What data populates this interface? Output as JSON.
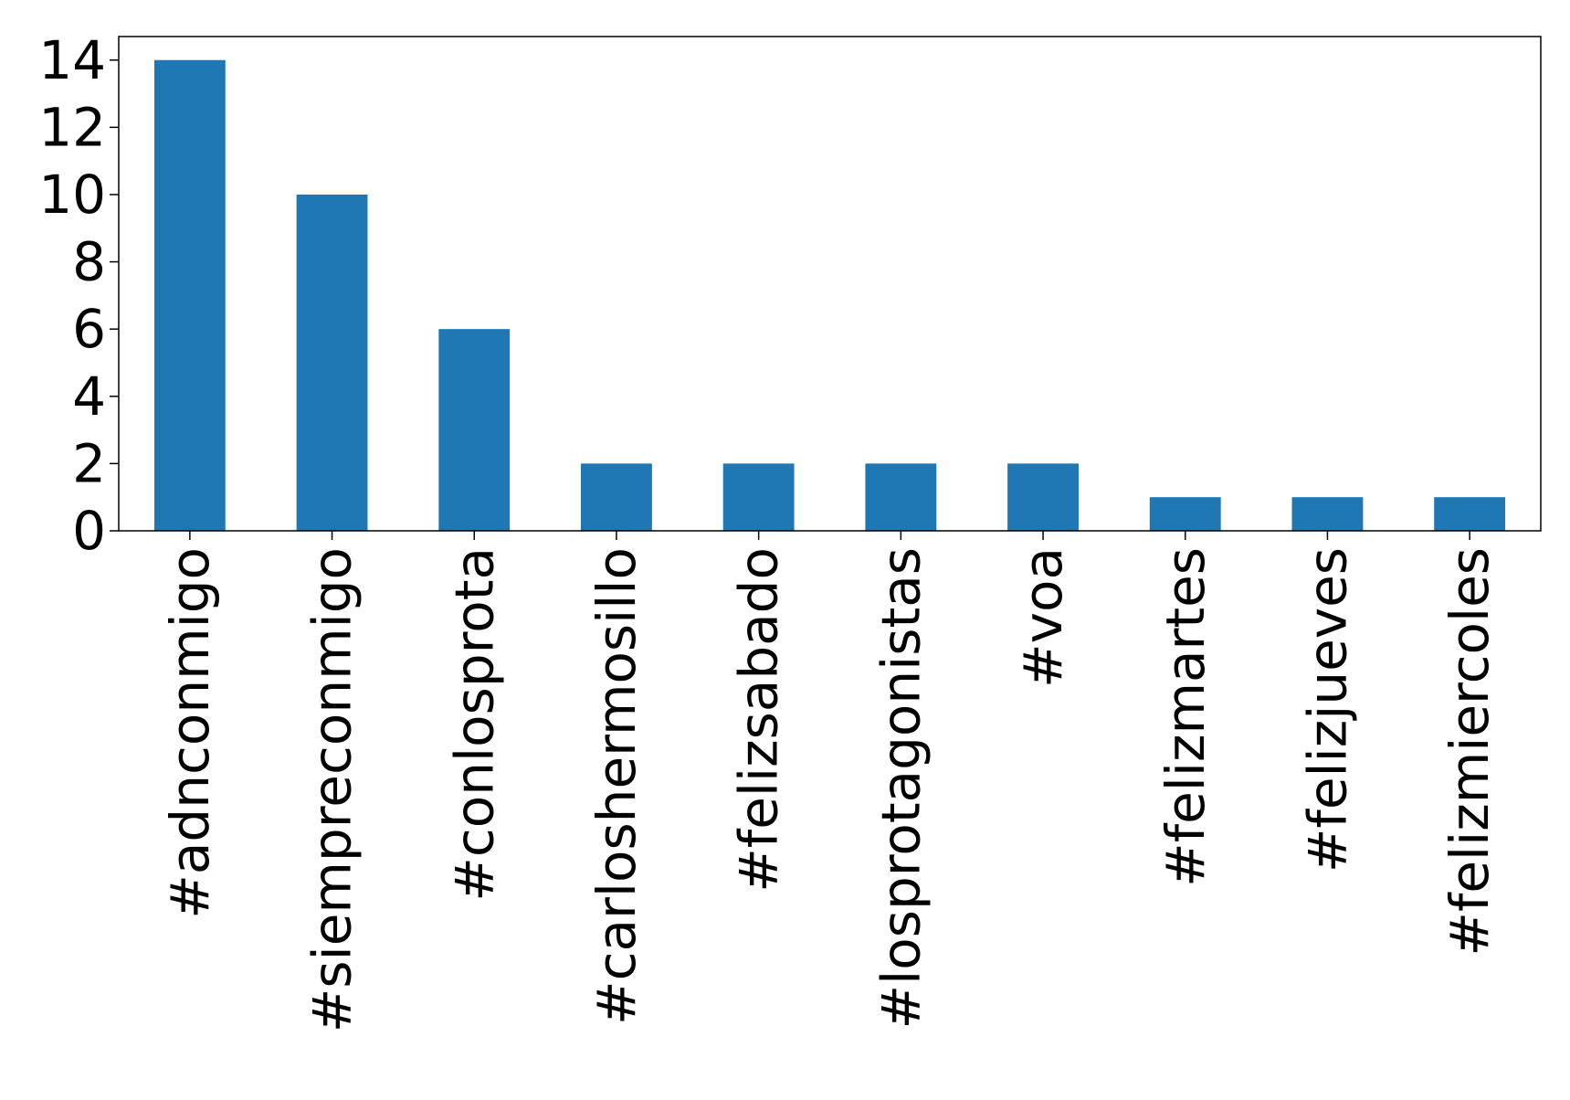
{
  "chart_data": {
    "type": "bar",
    "categories": [
      "#adnconmigo",
      "#siempreconmigo",
      "#conlosprota",
      "#carloshermosillo",
      "#felizsabado",
      "#losprotagonistas",
      "#voa",
      "#felizmartes",
      "#felizjueves",
      "#felizmiercoles"
    ],
    "values": [
      14,
      10,
      6,
      2,
      2,
      2,
      2,
      1,
      1,
      1
    ],
    "color": "#1f77b4",
    "ylim": [
      0,
      14.7
    ],
    "yticks": [
      0,
      2,
      4,
      6,
      8,
      10,
      12,
      14
    ],
    "grid": false
  }
}
